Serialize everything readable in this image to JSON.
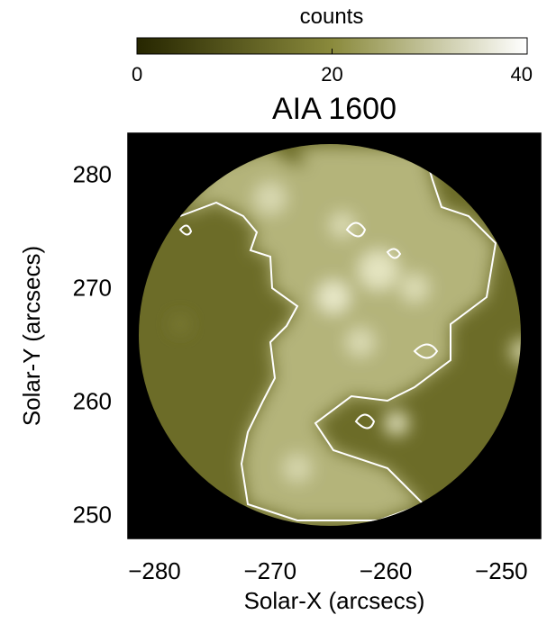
{
  "chart_data": {
    "type": "image",
    "title": "AIA 1600",
    "xlabel": "Solar-X (arcsecs)",
    "ylabel": "Solar-Y (arcsecs)",
    "xlim": [
      -282.3,
      -246.6
    ],
    "ylim": [
      247.9,
      283.6
    ],
    "xticks": [
      {
        "value": -280,
        "label": "−280"
      },
      {
        "value": -270,
        "label": "−270"
      },
      {
        "value": -260,
        "label": "−260"
      },
      {
        "value": -250,
        "label": "−250"
      }
    ],
    "yticks": [
      250,
      260,
      270,
      280
    ],
    "colorbar": {
      "label": "counts",
      "clim": [
        0,
        40
      ],
      "ticks": [
        0,
        20,
        40
      ],
      "colors": [
        "#262600",
        "#8a8a3c",
        "#ffffff"
      ]
    }
  }
}
